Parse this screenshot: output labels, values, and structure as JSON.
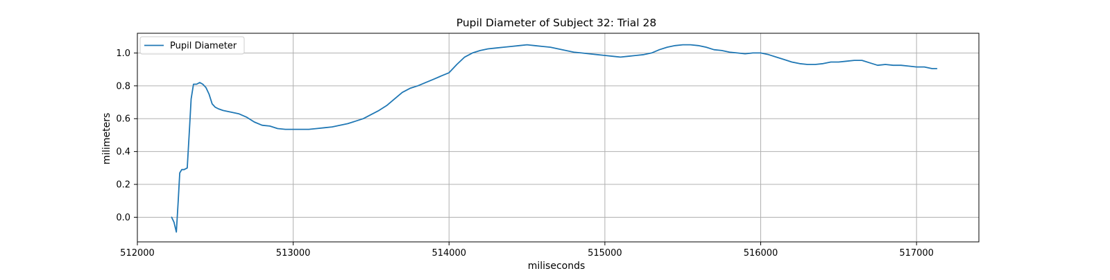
{
  "chart_data": {
    "type": "line",
    "title": "Pupil Diameter of Subject 32: Trial 28",
    "xlabel": "miliseconds",
    "ylabel": "milimeters",
    "xlim": [
      512000,
      517400
    ],
    "ylim": [
      -0.15,
      1.12
    ],
    "xticks": [
      512000,
      513000,
      514000,
      515000,
      516000,
      517000
    ],
    "xtick_labels": [
      "512000",
      "513000",
      "514000",
      "515000",
      "516000",
      "517000"
    ],
    "yticks": [
      0.0,
      0.2,
      0.4,
      0.6,
      0.8,
      1.0
    ],
    "ytick_labels": [
      "0.0",
      "0.2",
      "0.4",
      "0.6",
      "0.8",
      "1.0"
    ],
    "grid": true,
    "legend_position": "top-left",
    "series": [
      {
        "name": "Pupil Diameter",
        "color": "#1f77b4",
        "x": [
          512220,
          512235,
          512250,
          512262,
          512272,
          512285,
          512300,
          512320,
          512335,
          512345,
          512360,
          512380,
          512400,
          512420,
          512440,
          512460,
          512480,
          512500,
          512520,
          512550,
          512600,
          512650,
          512700,
          512750,
          512800,
          512850,
          512900,
          512950,
          513000,
          513050,
          513100,
          513150,
          513200,
          513250,
          513300,
          513350,
          513400,
          513450,
          513500,
          513550,
          513600,
          513650,
          513700,
          513750,
          513800,
          513850,
          513900,
          513950,
          514000,
          514050,
          514100,
          514150,
          514200,
          514250,
          514300,
          514350,
          514400,
          514450,
          514500,
          514550,
          514600,
          514650,
          514700,
          514750,
          514800,
          514850,
          514900,
          514950,
          515000,
          515050,
          515100,
          515150,
          515200,
          515250,
          515300,
          515350,
          515400,
          515450,
          515500,
          515550,
          515600,
          515650,
          515700,
          515750,
          515800,
          515850,
          515900,
          515950,
          516000,
          516050,
          516100,
          516150,
          516200,
          516250,
          516300,
          516350,
          516400,
          516450,
          516500,
          516550,
          516600,
          516650,
          516700,
          516750,
          516800,
          516850,
          516900,
          516950,
          517000,
          517050,
          517100,
          517130
        ],
        "y": [
          0.0,
          -0.03,
          -0.09,
          0.1,
          0.27,
          0.29,
          0.29,
          0.3,
          0.55,
          0.72,
          0.81,
          0.81,
          0.82,
          0.81,
          0.79,
          0.75,
          0.69,
          0.67,
          0.66,
          0.65,
          0.64,
          0.63,
          0.61,
          0.58,
          0.56,
          0.555,
          0.54,
          0.535,
          0.535,
          0.535,
          0.535,
          0.54,
          0.545,
          0.55,
          0.56,
          0.57,
          0.585,
          0.6,
          0.625,
          0.65,
          0.68,
          0.72,
          0.76,
          0.785,
          0.8,
          0.82,
          0.84,
          0.86,
          0.88,
          0.93,
          0.975,
          1.0,
          1.015,
          1.025,
          1.03,
          1.035,
          1.04,
          1.045,
          1.05,
          1.045,
          1.04,
          1.035,
          1.025,
          1.015,
          1.005,
          1.0,
          0.995,
          0.99,
          0.985,
          0.98,
          0.975,
          0.98,
          0.985,
          0.99,
          1.0,
          1.02,
          1.035,
          1.045,
          1.05,
          1.05,
          1.045,
          1.035,
          1.02,
          1.015,
          1.005,
          1.0,
          0.995,
          1.0,
          1.0,
          0.99,
          0.975,
          0.96,
          0.945,
          0.935,
          0.93,
          0.93,
          0.935,
          0.945,
          0.945,
          0.95,
          0.955,
          0.955,
          0.94,
          0.925,
          0.93,
          0.925,
          0.925,
          0.92,
          0.915,
          0.915,
          0.905,
          0.905
        ]
      }
    ]
  }
}
